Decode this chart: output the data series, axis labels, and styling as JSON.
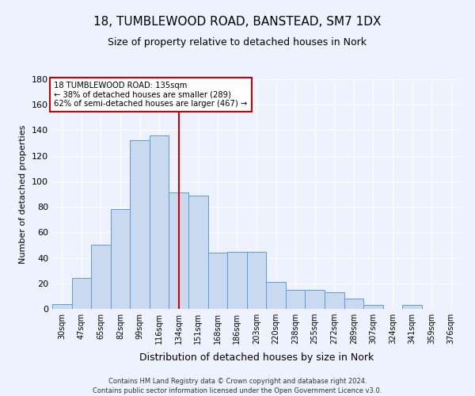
{
  "title": "18, TUMBLEWOOD ROAD, BANSTEAD, SM7 1DX",
  "subtitle": "Size of property relative to detached houses in Nork",
  "xlabel": "Distribution of detached houses by size in Nork",
  "ylabel": "Number of detached properties",
  "bin_labels": [
    "30sqm",
    "47sqm",
    "65sqm",
    "82sqm",
    "99sqm",
    "116sqm",
    "134sqm",
    "151sqm",
    "168sqm",
    "186sqm",
    "203sqm",
    "220sqm",
    "238sqm",
    "255sqm",
    "272sqm",
    "289sqm",
    "307sqm",
    "324sqm",
    "341sqm",
    "359sqm",
    "376sqm"
  ],
  "bar_values": [
    4,
    24,
    50,
    78,
    132,
    136,
    91,
    89,
    44,
    45,
    45,
    21,
    15,
    15,
    13,
    8,
    3,
    0,
    3,
    0,
    0
  ],
  "bar_color": "#c9d9f0",
  "bar_edge_color": "#5b9bd5",
  "vline_position": 6,
  "vline_color": "#cc0000",
  "annotation_title": "18 TUMBLEWOOD ROAD: 135sqm",
  "annotation_line1": "← 38% of detached houses are smaller (289)",
  "annotation_line2": "62% of semi-detached houses are larger (467) →",
  "annotation_box_color": "#cc0000",
  "ylim": [
    0,
    180
  ],
  "yticks": [
    0,
    20,
    40,
    60,
    80,
    100,
    120,
    140,
    160,
    180
  ],
  "background_color": "#eef2ff",
  "grid_color": "#ffffff",
  "footer1": "Contains HM Land Registry data © Crown copyright and database right 2024.",
  "footer2": "Contains public sector information licensed under the Open Government Licence v3.0."
}
